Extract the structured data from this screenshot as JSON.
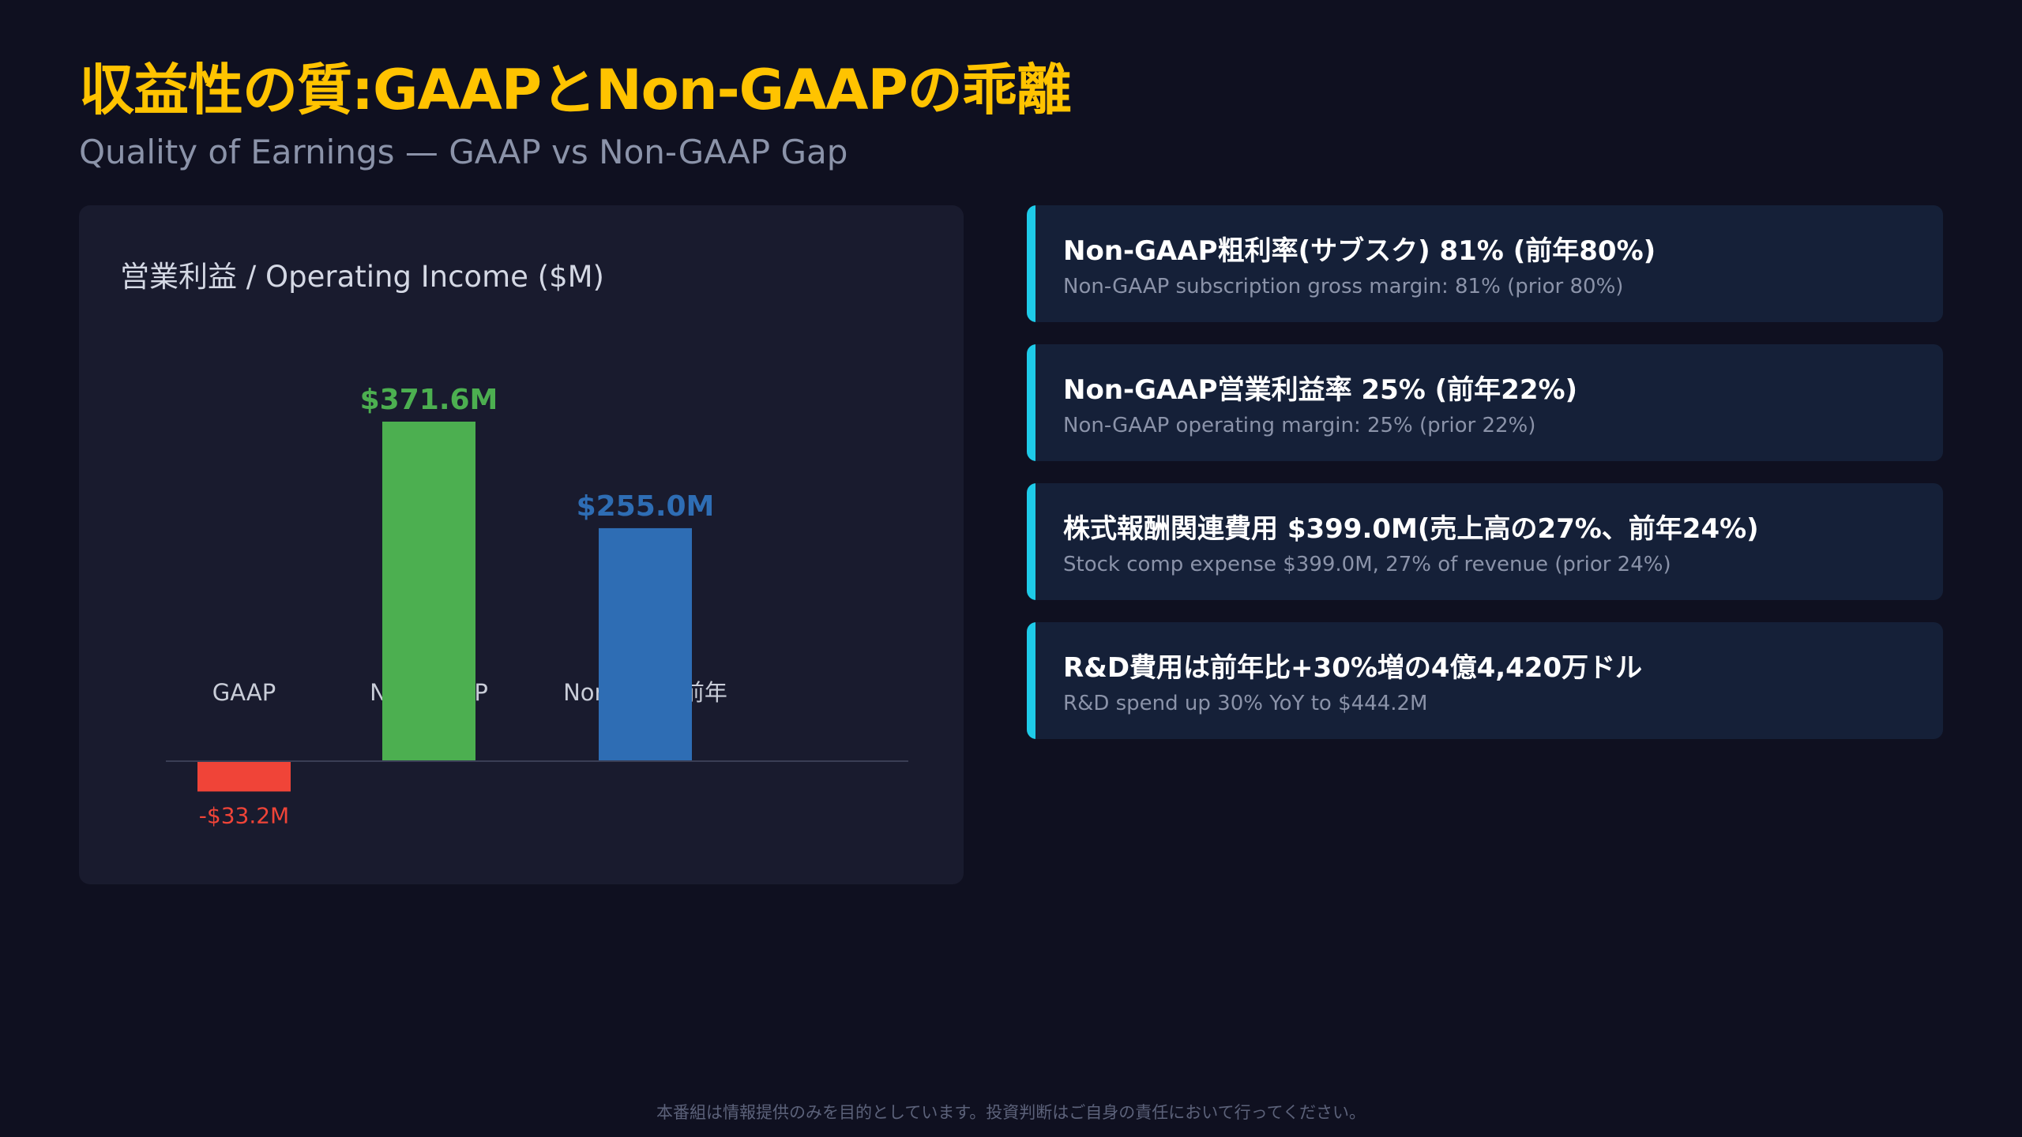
{
  "header": {
    "title": "収益性の質:GAAPとNon-GAAPの乖離",
    "subtitle": "Quality of Earnings — GAAP vs Non-GAAP Gap"
  },
  "chart_data": {
    "type": "bar",
    "title": "営業利益 / Operating Income ($M)",
    "categories": [
      "GAAP",
      "Non-GAAP",
      "Non-GAAP前年"
    ],
    "values": [
      -33.2,
      371.6,
      255.0
    ],
    "value_labels": [
      "-$33.2M",
      "$371.6M",
      "$255.0M"
    ],
    "colors": [
      "#f04438",
      "#4caf50",
      "#2e6db4"
    ],
    "ylim": [
      -60,
      400
    ],
    "grid": false,
    "legend": "none"
  },
  "cards": [
    {
      "title": "Non-GAAP粗利率(サブスク) 81% (前年80%)",
      "subtitle": "Non-GAAP subscription gross margin: 81% (prior 80%)"
    },
    {
      "title": "Non-GAAP営業利益率 25% (前年22%)",
      "subtitle": "Non-GAAP operating margin: 25% (prior 22%)"
    },
    {
      "title": "株式報酬関連費用 $399.0M(売上高の27%、前年24%)",
      "subtitle": "Stock comp expense $399.0M, 27% of revenue (prior 24%)"
    },
    {
      "title": "R&D費用は前年比+30%増の4億4,420万ドル",
      "subtitle": "R&D spend up 30% YoY to $444.2M"
    }
  ],
  "colors": {
    "background": "#0f1020",
    "title": "#ffc300",
    "panel": "#191b2e",
    "card": "#152038",
    "accent": "#1ecbe9"
  },
  "footer": "本番組は情報提供のみを目的としています。投資判断はご自身の責任において行ってください。"
}
